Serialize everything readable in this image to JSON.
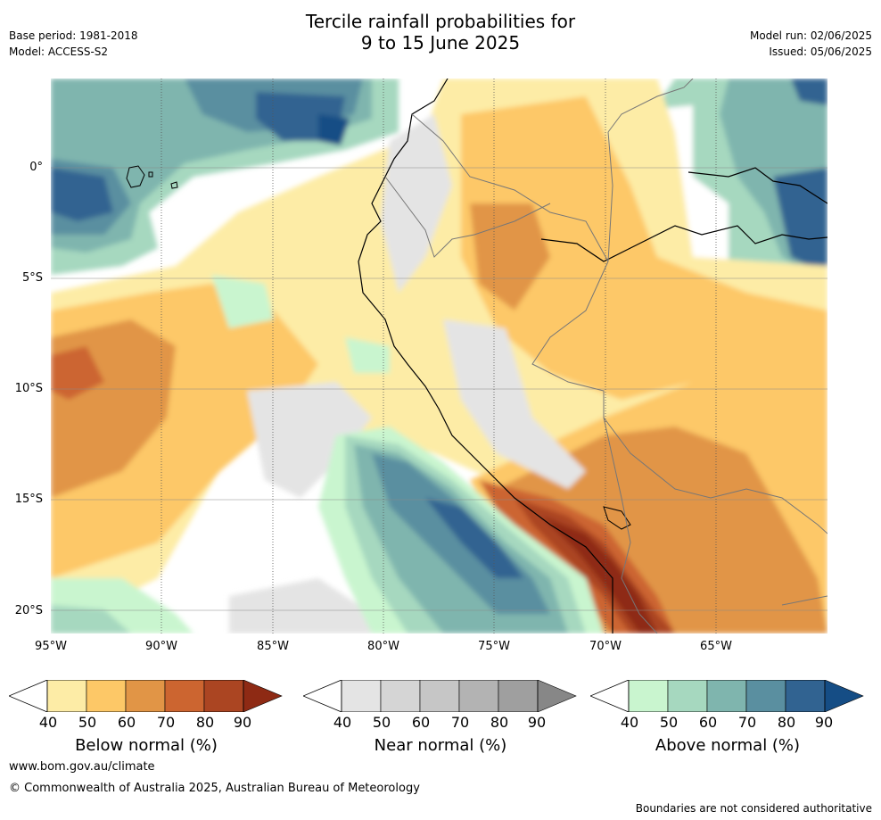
{
  "title": {
    "line1": "Tercile rainfall probabilities for",
    "line2": "9 to 15 June 2025"
  },
  "meta": {
    "base_period": "Base period: 1981-2018",
    "model": "Model: ACCESS-S2",
    "model_run": "Model run: 02/06/2025",
    "issued": "Issued: 05/06/2025"
  },
  "map": {
    "lat_labels": [
      "0°",
      "5°S",
      "10°S",
      "15°S",
      "20°S"
    ],
    "lon_labels": [
      "95°W",
      "90°W",
      "85°W",
      "80°W",
      "75°W",
      "70°W",
      "65°W"
    ],
    "grid": "on"
  },
  "legends": [
    {
      "title": "Below normal (%)",
      "ticks": [
        "40",
        "50",
        "60",
        "70",
        "80",
        "90"
      ],
      "colors": [
        "#fdeca6",
        "#fdc867",
        "#e19546",
        "#cc6530",
        "#ab4522",
        "#8e2a14"
      ]
    },
    {
      "title": "Near normal (%)",
      "ticks": [
        "40",
        "50",
        "60",
        "70",
        "80",
        "90"
      ],
      "colors": [
        "#e4e4e4",
        "#d5d5d5",
        "#c6c6c6",
        "#b3b3b3",
        "#9f9f9f",
        "#878787"
      ]
    },
    {
      "title": "Above normal (%)",
      "ticks": [
        "40",
        "50",
        "60",
        "70",
        "80",
        "90"
      ],
      "colors": [
        "#c9f5cf",
        "#a6d8bf",
        "#7fb5ae",
        "#5a8fa0",
        "#316391",
        "#154d85"
      ]
    }
  ],
  "footer": {
    "website": "www.bom.gov.au/climate",
    "copyright": "© Commonwealth of Australia 2025, Australian Bureau of Meteorology",
    "disclaimer": "Boundaries are not considered authoritative"
  }
}
